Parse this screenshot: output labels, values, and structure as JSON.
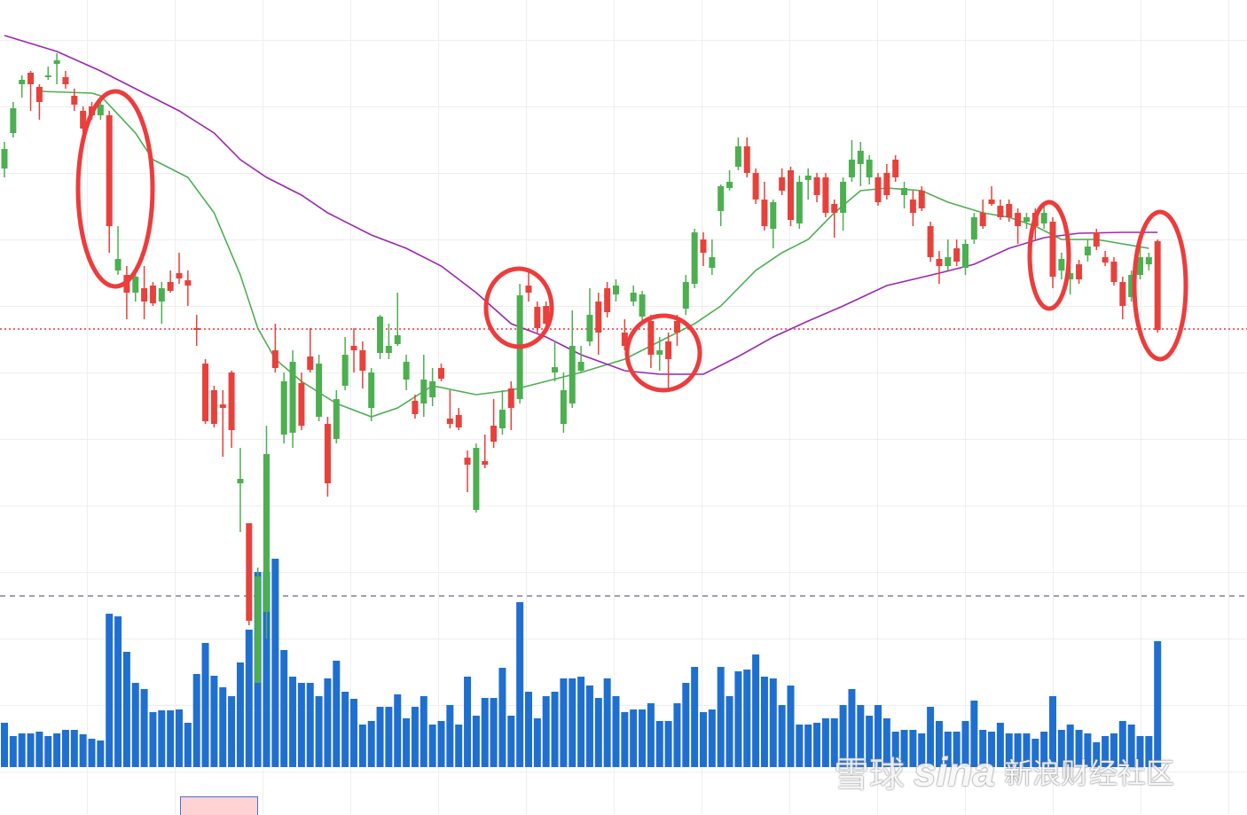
{
  "chart_data": {
    "type": "candlestick",
    "open": [
      532,
      578,
      610,
      605,
      585,
      615,
      632,
      605,
      582,
      555,
      570,
      582,
      445,
      408,
      370,
      388,
      360,
      358,
      375,
      372,
      386,
      378,
      328,
      225,
      222,
      240,
      215,
      160,
      0,
      50,
      188,
      285,
      270,
      292,
      220,
      283,
      290,
      155,
      250,
      300,
      305,
      282,
      280,
      343,
      310,
      322,
      292,
      233,
      272,
      270,
      273,
      222,
      218,
      176,
      195,
      176,
      202,
      238,
      240,
      367,
      370,
      330,
      335,
      286,
      260,
      310,
      292,
      345,
      325,
      348,
      378,
      310,
      370,
      368,
      300,
      305,
      295,
      325,
      382,
      438,
      415,
      410,
      490,
      495,
      535,
      505,
      475,
      445,
      472,
      485,
      452,
      495,
      502,
      480,
      460,
      460,
      495,
      520,
      530,
      520,
      472,
      480,
      500,
      488,
      460,
      465,
      410,
      400,
      410,
      405,
      425,
      455,
      445,
      470,
      455,
      455,
      445,
      455,
      445,
      460,
      388,
      408,
      392,
      385,
      422,
      422,
      404,
      382,
      355,
      390,
      410,
      410,
      328
    ],
    "high": [
      540,
      585,
      615,
      620,
      605,
      625,
      640,
      620,
      600,
      580,
      585,
      590,
      575,
      445,
      400,
      395,
      400,
      382,
      382,
      395,
      415,
      395,
      345,
      295,
      265,
      260,
      282,
      195,
      110,
      60,
      220,
      335,
      280,
      305,
      280,
      330,
      300,
      230,
      260,
      320,
      330,
      315,
      285,
      345,
      335,
      370,
      300,
      255,
      300,
      285,
      290,
      260,
      240,
      192,
      200,
      210,
      250,
      260,
      270,
      380,
      395,
      360,
      360,
      315,
      280,
      350,
      310,
      375,
      370,
      382,
      385,
      340,
      378,
      372,
      345,
      320,
      325,
      345,
      390,
      442,
      438,
      430,
      492,
      508,
      545,
      545,
      510,
      495,
      475,
      510,
      512,
      502,
      510,
      505,
      505,
      475,
      500,
      542,
      540,
      525,
      505,
      515,
      525,
      495,
      485,
      490,
      450,
      417,
      430,
      430,
      430,
      460,
      475,
      490,
      475,
      475,
      465,
      460,
      465,
      468,
      455,
      415,
      400,
      407,
      430,
      442,
      417,
      410,
      388,
      395,
      430,
      415,
      430
    ],
    "low": [
      500,
      545,
      590,
      575,
      565,
      610,
      605,
      600,
      575,
      550,
      565,
      565,
      415,
      390,
      340,
      360,
      340,
      355,
      335,
      370,
      380,
      355,
      310,
      222,
      218,
      185,
      195,
      100,
      -5,
      -70,
      -20,
      280,
      200,
      195,
      215,
      280,
      225,
      140,
      200,
      260,
      280,
      262,
      225,
      295,
      295,
      310,
      260,
      228,
      230,
      242,
      270,
      217,
      215,
      145,
      122,
      172,
      195,
      210,
      215,
      245,
      360,
      325,
      328,
      270,
      212,
      240,
      280,
      310,
      300,
      342,
      360,
      305,
      355,
      335,
      285,
      282,
      260,
      310,
      345,
      375,
      400,
      390,
      445,
      485,
      508,
      500,
      470,
      440,
      420,
      480,
      445,
      442,
      475,
      472,
      455,
      432,
      440,
      495,
      490,
      492,
      468,
      475,
      495,
      465,
      445,
      462,
      405,
      380,
      395,
      400,
      390,
      425,
      442,
      468,
      452,
      450,
      425,
      442,
      430,
      442,
      375,
      385,
      368,
      380,
      405,
      418,
      400,
      378,
      340,
      360,
      385,
      395,
      325
    ],
    "close": [
      510,
      550,
      605,
      618,
      602,
      613,
      628,
      613,
      592,
      575,
      580,
      570,
      570,
      395,
      390,
      370,
      375,
      378,
      360,
      382,
      392,
      384,
      330,
      290,
      260,
      244,
      280,
      155,
      110,
      -70,
      10,
      305,
      210,
      212,
      268,
      298,
      230,
      222,
      205,
      265,
      310,
      305,
      240,
      302,
      302,
      312,
      272,
      248,
      245,
      252,
      285,
      228,
      232,
      184,
      125,
      180,
      220,
      217,
      262,
      250,
      378,
      354,
      355,
      280,
      222,
      245,
      282,
      315,
      360,
      375,
      368,
      325,
      360,
      343,
      338,
      300,
      315,
      338,
      352,
      380,
      430,
      398,
      462,
      488,
      512,
      535,
      505,
      475,
      442,
      500,
      508,
      448,
      497,
      500,
      500,
      470,
      460,
      500,
      515,
      500,
      500,
      505,
      520,
      480,
      475,
      485,
      445,
      408,
      400,
      420,
      398,
      430,
      460,
      475,
      468,
      470,
      460,
      450,
      460,
      448,
      450,
      395,
      385,
      402,
      412,
      438,
      410,
      405,
      382,
      365,
      390,
      402,
      428
    ],
    "up_color": "#e8413b",
    "down_color": "#4caf50",
    "ylim": [
      -218,
      700
    ],
    "volume": {
      "color": "#1f6fd1",
      "ylim": [
        0,
        865
      ],
      "values": [
        50,
        35,
        38,
        38,
        40,
        35,
        38,
        42,
        42,
        37,
        32,
        30,
        173,
        170,
        130,
        95,
        88,
        62,
        64,
        64,
        65,
        50,
        105,
        140,
        103,
        90,
        80,
        118,
        155,
        220,
        220,
        235,
        132,
        102,
        95,
        95,
        80,
        100,
        120,
        85,
        77,
        48,
        52,
        68,
        68,
        82,
        55,
        68,
        80,
        48,
        52,
        70,
        48,
        102,
        58,
        78,
        78,
        112,
        58,
        186,
        85,
        55,
        80,
        85,
        100,
        100,
        102,
        92,
        78,
        100,
        80,
        62,
        65,
        65,
        72,
        52,
        52,
        72,
        95,
        113,
        62,
        65,
        113,
        80,
        108,
        110,
        127,
        102,
        100,
        70,
        92,
        48,
        48,
        50,
        55,
        55,
        70,
        88,
        70,
        58,
        70,
        55,
        40,
        42,
        42,
        38,
        68,
        52,
        40,
        40,
        52,
        75,
        42,
        40,
        50,
        38,
        38,
        38,
        32,
        40,
        80,
        42,
        48,
        42,
        38,
        28,
        35,
        38,
        52,
        48,
        35,
        35,
        142
      ]
    },
    "moving_averages": [
      {
        "color": "#4caf50",
        "x": [
          4,
          10,
          11,
          15,
          17,
          21,
          24,
          27,
          29,
          31,
          34,
          38,
          42,
          45,
          49,
          54,
          58,
          62,
          66,
          71,
          75,
          79,
          82,
          86,
          89,
          92,
          95,
          98,
          101,
          105,
          108,
          112,
          115,
          118,
          121,
          125,
          128,
          131
        ],
        "values": [
          597,
          595,
          592,
          550,
          520,
          500,
          460,
          390,
          330,
          295,
          270,
          245,
          230,
          240,
          265,
          255,
          260,
          270,
          280,
          295,
          315,
          335,
          355,
          395,
          415,
          430,
          460,
          485,
          488,
          485,
          472,
          460,
          455,
          445,
          430,
          430,
          425,
          420
        ]
      },
      {
        "color": "#9c27b0",
        "x": [
          0,
          6,
          11,
          15,
          20,
          24,
          27,
          30,
          34,
          37,
          42,
          46,
          50,
          54,
          58,
          62,
          66,
          71,
          75,
          80,
          84,
          88,
          92,
          96,
          101,
          107,
          111,
          115,
          119,
          123,
          128,
          132
        ],
        "values": [
          660,
          642,
          620,
          600,
          575,
          550,
          520,
          500,
          480,
          460,
          435,
          420,
          400,
          370,
          335,
          320,
          300,
          282,
          278,
          278,
          298,
          320,
          338,
          355,
          378,
          392,
          402,
          420,
          432,
          437,
          438,
          438
        ]
      }
    ],
    "reference_line": {
      "value": 329,
      "color": "#e53935"
    }
  },
  "watermark": {
    "logo": "雪球",
    "brand": "sina",
    "text": "新浪财经社区"
  }
}
